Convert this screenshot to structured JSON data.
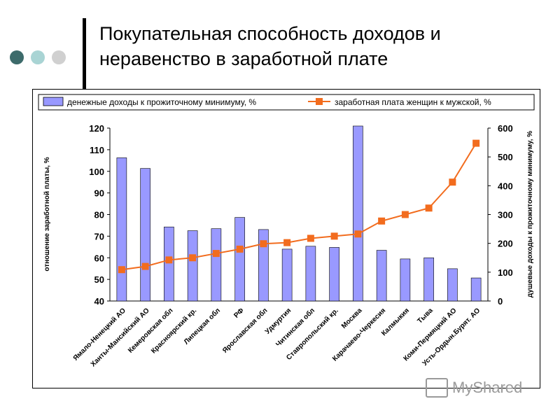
{
  "slide": {
    "title_line1": "Покупательная способность доходов и",
    "title_line2": "неравенство в заработной плате",
    "dot_colors": [
      "#3d6b6b",
      "#a9d4d4",
      "#d0d0d0"
    ],
    "watermark": "MyShared"
  },
  "chart_data": {
    "type": "bar+line",
    "categories": [
      "Ямало-Ненецкий АО",
      "Ханты-Мансийский АО",
      "Кемеровская обл",
      "Красноярский кр.",
      "Липецкая обл",
      "РФ",
      "Ярославская обл",
      "Удмуртия",
      "Читинская обл",
      "Ставропольский кр.",
      "Москва",
      "Карачаево-Черкесия",
      "Калмыкия",
      "Тыва",
      "Коми-Пермяцкий АО",
      "Усть-Ордын.Бурят. АО"
    ],
    "series": [
      {
        "name": "денежные доходы к прожиточному минимуму, %",
        "type": "bar",
        "axis": "right",
        "color": "#9999ff",
        "values": [
          497,
          460,
          257,
          244,
          251,
          290,
          248,
          180,
          190,
          186,
          620,
          176,
          146,
          150,
          112,
          80
        ]
      },
      {
        "name": "заработная плата женщин к мужской, %",
        "type": "line",
        "axis": "left",
        "color": "#f26c1e",
        "values": [
          54.5,
          56,
          59,
          60,
          62,
          64,
          66.5,
          67,
          69,
          70,
          71,
          77,
          80,
          83,
          95,
          113
        ]
      }
    ],
    "left_axis": {
      "label": "отношение заработной платы, %",
      "min": 40,
      "max": 120,
      "ticks": [
        40,
        50,
        60,
        70,
        80,
        90,
        100,
        110,
        120
      ]
    },
    "right_axis": {
      "label": "душевые доходы к прожиточному минимуму, %",
      "min": 0,
      "max": 600,
      "ticks": [
        0,
        100,
        200,
        300,
        400,
        500,
        600
      ]
    },
    "legend_position": "top"
  }
}
